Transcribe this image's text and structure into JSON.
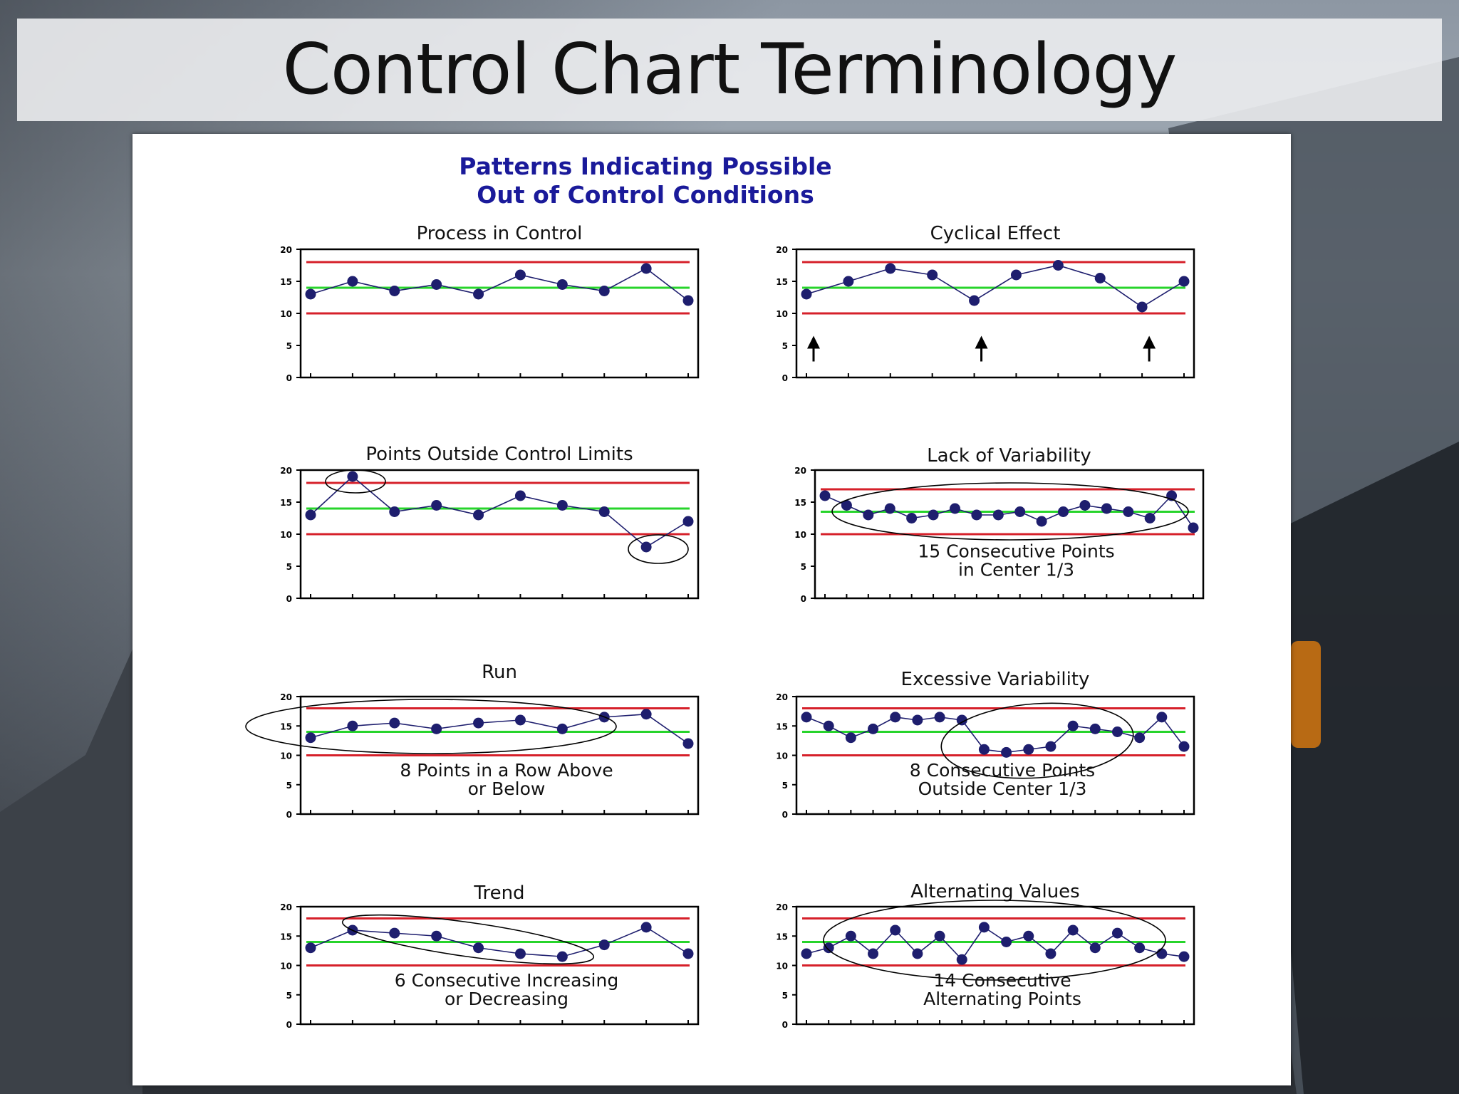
{
  "slide": {
    "title": "Control Chart Terminology",
    "header_line1": "Patterns Indicating Possible",
    "header_line2": "Out of Control Conditions"
  },
  "colors": {
    "limit_line": "#d6202a",
    "center_line": "#27d42b",
    "point": "#1e1e6e",
    "header_text": "#1a1a9a"
  },
  "chart_data": [
    {
      "type": "line",
      "title": "Process in Control",
      "ylim": [
        0,
        20
      ],
      "yticks": [
        0,
        5,
        10,
        15,
        20
      ],
      "ucl": 18,
      "cl": 14,
      "lcl": 10,
      "values": [
        13,
        15,
        13.5,
        14.5,
        13,
        16,
        14.5,
        13.5,
        17,
        12
      ],
      "annotation": [],
      "markers": []
    },
    {
      "type": "line",
      "title": "Cyclical Effect",
      "ylim": [
        0,
        20
      ],
      "yticks": [
        0,
        5,
        10,
        15,
        20
      ],
      "ucl": 18,
      "cl": 14,
      "lcl": 10,
      "values": [
        13,
        15,
        17,
        16,
        12,
        16,
        17.5,
        15.5,
        11,
        15
      ],
      "annotation": [],
      "markers": [
        "arrow-up",
        "arrow-up",
        "arrow-up"
      ]
    },
    {
      "type": "line",
      "title": "Points Outside Control Limits",
      "ylim": [
        0,
        20
      ],
      "yticks": [
        0,
        5,
        10,
        15,
        20
      ],
      "ucl": 18,
      "cl": 14,
      "lcl": 10,
      "values": [
        13,
        19,
        13.5,
        14.5,
        13,
        16,
        14.5,
        13.5,
        8,
        12
      ],
      "annotation": [],
      "markers": []
    },
    {
      "type": "line",
      "title": "Lack of Variability",
      "ylim": [
        0,
        20
      ],
      "yticks": [
        0,
        5,
        10,
        15,
        20
      ],
      "ucl": 17,
      "cl": 13.5,
      "lcl": 10,
      "values": [
        16,
        14.5,
        13,
        14,
        12.5,
        13,
        14,
        13,
        13,
        13.5,
        12,
        13.5,
        14.5,
        14,
        13.5,
        12.5,
        16,
        11
      ],
      "annotation": [
        "15 Consecutive Points",
        "in Center 1/3"
      ],
      "markers": []
    },
    {
      "type": "line",
      "title": "Run",
      "ylim": [
        0,
        20
      ],
      "yticks": [
        0,
        5,
        10,
        15,
        20
      ],
      "ucl": 18,
      "cl": 14,
      "lcl": 10,
      "values": [
        13,
        15,
        15.5,
        14.5,
        15.5,
        16,
        14.5,
        16.5,
        17,
        12
      ],
      "annotation": [
        "8 Points in a Row Above",
        "or Below"
      ],
      "markers": []
    },
    {
      "type": "line",
      "title": "Excessive Variability",
      "ylim": [
        0,
        20
      ],
      "yticks": [
        0,
        5,
        10,
        15,
        20
      ],
      "ucl": 18,
      "cl": 14,
      "lcl": 10,
      "values": [
        16.5,
        15,
        13,
        14.5,
        16.5,
        16,
        16.5,
        16,
        11,
        10.5,
        11,
        11.5,
        15,
        14.5,
        14,
        13,
        16.5,
        11.5
      ],
      "annotation": [
        "8 Consecutive Points",
        "Outside Center 1/3"
      ],
      "markers": []
    },
    {
      "type": "line",
      "title": "Trend",
      "ylim": [
        0,
        20
      ],
      "yticks": [
        0,
        5,
        10,
        15,
        20
      ],
      "ucl": 18,
      "cl": 14,
      "lcl": 10,
      "values": [
        13,
        16,
        15.5,
        15,
        13,
        12,
        11.5,
        13.5,
        16.5,
        12
      ],
      "annotation": [
        "6 Consecutive Increasing",
        "or Decreasing"
      ],
      "markers": []
    },
    {
      "type": "line",
      "title": "Alternating Values",
      "ylim": [
        0,
        20
      ],
      "yticks": [
        0,
        5,
        10,
        15,
        20
      ],
      "ucl": 18,
      "cl": 14,
      "lcl": 10,
      "values": [
        12,
        13,
        15,
        12,
        16,
        12,
        15,
        11,
        16.5,
        14,
        15,
        12,
        16,
        13,
        15.5,
        13,
        12,
        11.5
      ],
      "annotation": [
        "14 Consecutive",
        "Alternating Points"
      ],
      "markers": []
    }
  ]
}
